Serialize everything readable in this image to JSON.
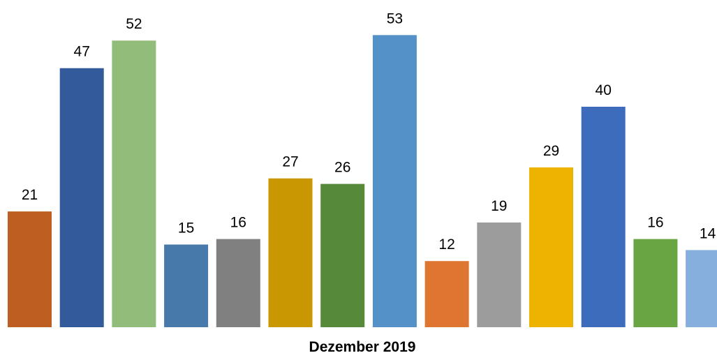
{
  "chart_data": {
    "type": "bar",
    "xlabel": "Dezember 2019",
    "ylabel": "",
    "ylim": [
      0,
      60
    ],
    "grid": false,
    "legend": "none",
    "bars": [
      {
        "value": 21,
        "color": "#BE5F21"
      },
      {
        "value": 47,
        "color": "#335A9A"
      },
      {
        "value": 52,
        "color": "#92BC79"
      },
      {
        "value": 15,
        "color": "#4779AA"
      },
      {
        "value": 16,
        "color": "#808080"
      },
      {
        "value": 27,
        "color": "#C99702"
      },
      {
        "value": 26,
        "color": "#578A38"
      },
      {
        "value": 53,
        "color": "#5591C9"
      },
      {
        "value": 12,
        "color": "#DE7530"
      },
      {
        "value": 19,
        "color": "#9C9C9C"
      },
      {
        "value": 29,
        "color": "#EDB300"
      },
      {
        "value": 40,
        "color": "#3E6CBC"
      },
      {
        "value": 16,
        "color": "#6AA543"
      },
      {
        "value": 14,
        "color": "#87AFDE"
      }
    ]
  }
}
